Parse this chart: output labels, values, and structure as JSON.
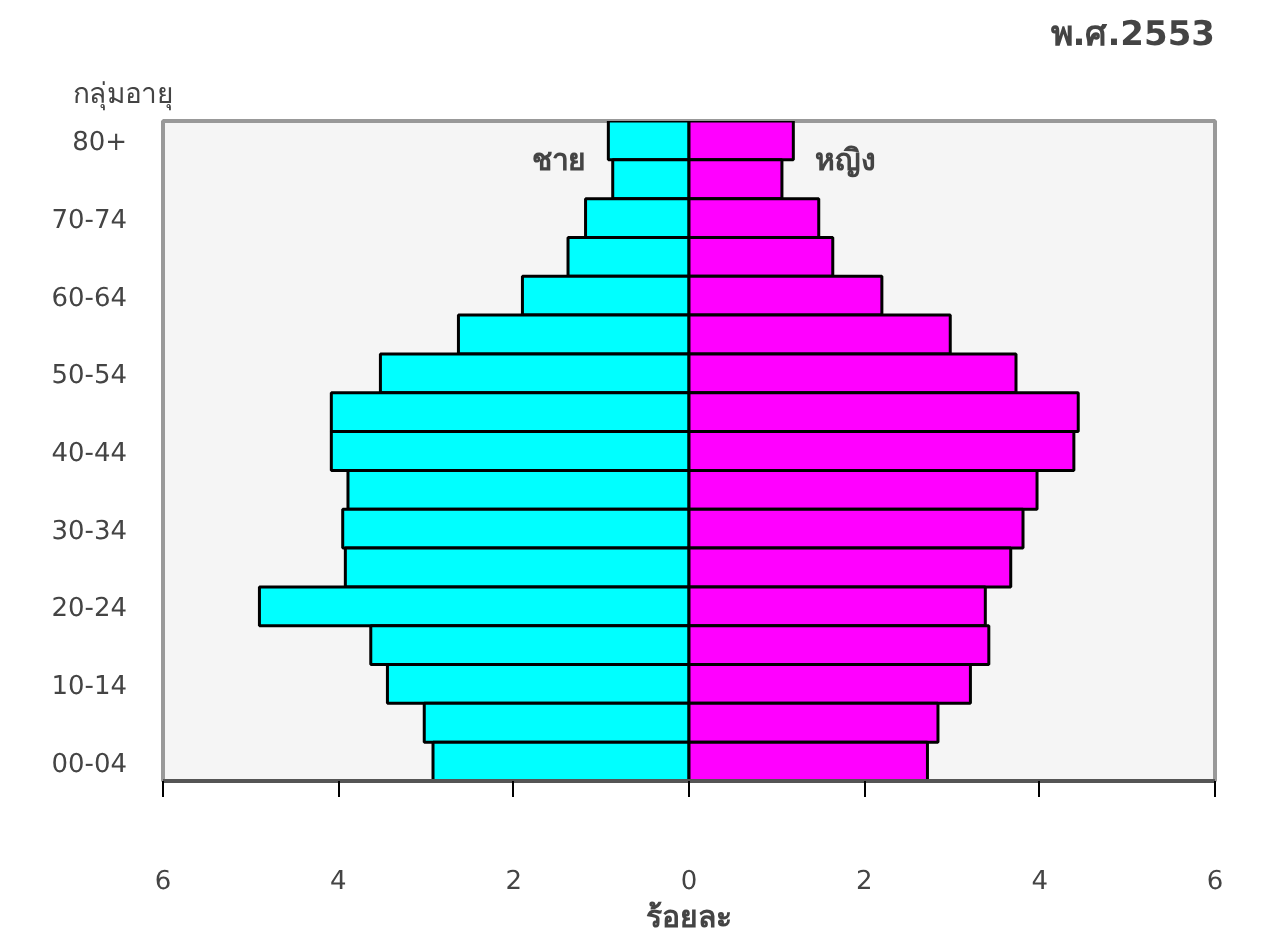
{
  "chart_data": {
    "type": "bar",
    "orientation": "horizontal",
    "title": "พ.ศ.2553",
    "ylabel": "กลุ่มอายุ",
    "xlabel": "ร้อยละ",
    "categories": [
      "80+",
      null,
      "70-74",
      null,
      "60-64",
      null,
      "50-54",
      null,
      "40-44",
      null,
      "30-34",
      null,
      "20-24",
      null,
      "10-14",
      null,
      "00-04"
    ],
    "series": [
      {
        "name": "ชาย",
        "color": "#00ffff",
        "values": [
          -0.92,
          -0.87,
          -1.18,
          -1.38,
          -1.9,
          -2.63,
          -3.52,
          -4.08,
          -4.08,
          -3.89,
          -3.95,
          -3.92,
          -4.9,
          -3.63,
          -3.44,
          -3.02,
          -2.92
        ]
      },
      {
        "name": "หญิง",
        "color": "#ff00ff",
        "values": [
          1.19,
          1.06,
          1.48,
          1.64,
          2.2,
          2.98,
          3.73,
          4.44,
          4.39,
          3.97,
          3.81,
          3.67,
          3.38,
          3.42,
          3.21,
          2.84,
          2.72
        ]
      }
    ],
    "xlim": [
      -6,
      6
    ],
    "xticks": [
      {
        "value": -6,
        "label": "6"
      },
      {
        "value": -4,
        "label": "4"
      },
      {
        "value": -2,
        "label": "2"
      },
      0,
      2,
      4,
      6
    ],
    "stacked": true,
    "grid": false
  }
}
